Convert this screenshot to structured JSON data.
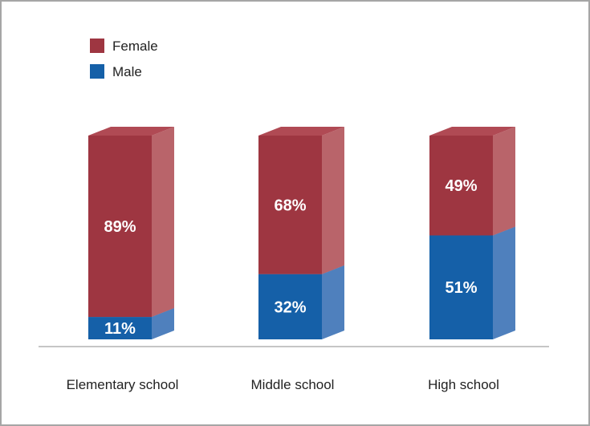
{
  "chart_data": {
    "type": "bar",
    "stacked": true,
    "categories": [
      "Elementary school",
      "Middle school",
      "High school"
    ],
    "series": [
      {
        "name": "Male",
        "values": [
          11,
          32,
          51
        ],
        "labels": [
          "11%",
          "32%",
          "51%"
        ],
        "color": "#1560a8",
        "side_color": "#4f80bd",
        "top_color": "#3f74b8"
      },
      {
        "name": "Female",
        "values": [
          89,
          68,
          49
        ],
        "labels": [
          "89%",
          "68%",
          "49%"
        ],
        "color": "#9e3641",
        "side_color": "#b9646a",
        "top_color": "#b04a54"
      }
    ],
    "ylim": [
      0,
      100
    ],
    "legend": {
      "position": "top-left",
      "items": [
        {
          "name": "Female",
          "color": "#9e3641"
        },
        {
          "name": "Male",
          "color": "#1560a8"
        }
      ]
    },
    "grid": false
  }
}
